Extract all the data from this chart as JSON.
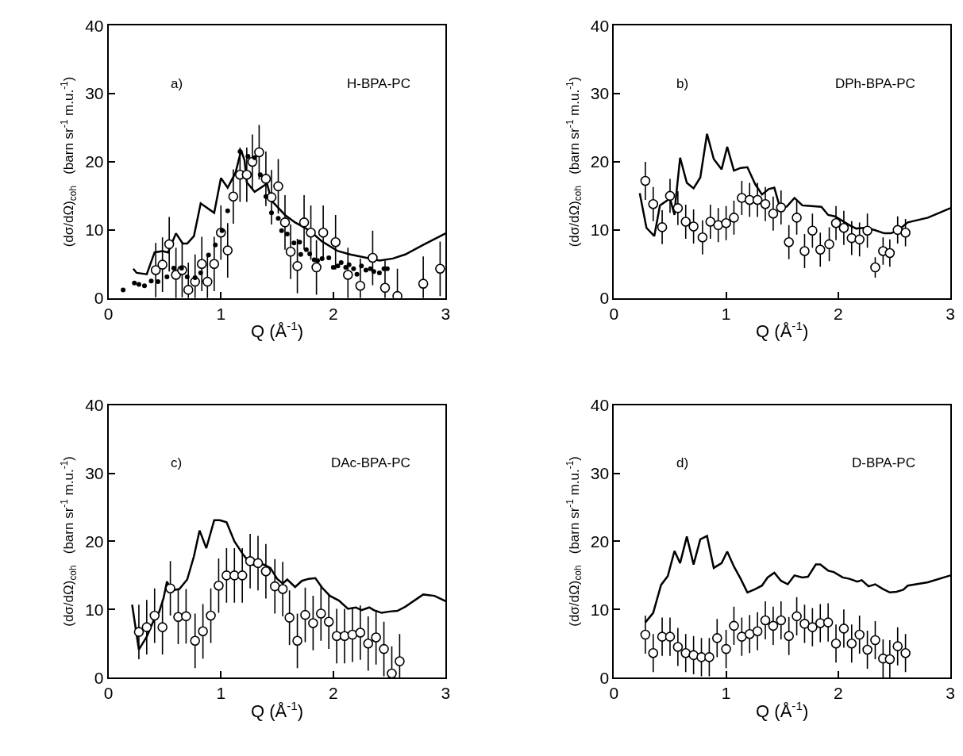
{
  "chart_data": [
    {
      "type": "line",
      "xlabel": "Q (Å$^{-1}$)",
      "ylabel": "(dσ/dΩ)$_{coh}$   (barn sr$^{-1}$ m.u.$^{-1}$)",
      "annotations": [
        "a)",
        "H-BPA-PC"
      ],
      "xlim": [
        0,
        3
      ],
      "xticks": [
        0,
        1,
        2,
        3
      ],
      "ylim": [
        0,
        40
      ],
      "yticks": [
        0,
        10,
        20,
        30,
        40
      ],
      "series": [
        {
          "color": "#000000",
          "line_style": "solid",
          "x": [
            0.22,
            0.25,
            0.34,
            0.41,
            0.48,
            0.53,
            0.6,
            0.66,
            0.7,
            0.76,
            0.82,
            0.94,
            1.0,
            1.06,
            1.13,
            1.18,
            1.21,
            1.23,
            1.3,
            1.41,
            1.45,
            1.57,
            1.66,
            1.79,
            1.9,
            2.04,
            2.15,
            2.27,
            2.41,
            2.53,
            2.64,
            2.8,
            3.0
          ],
          "values": [
            4.3,
            3.7,
            3.5,
            6.7,
            6.9,
            6.7,
            9.5,
            8.0,
            8.0,
            9.1,
            13.9,
            12.5,
            17.6,
            16.2,
            18.4,
            21.7,
            20.2,
            17.0,
            15.6,
            16.8,
            14.3,
            12.2,
            11.1,
            9.9,
            8.3,
            6.9,
            6.4,
            6.0,
            5.5,
            5.8,
            6.4,
            7.8,
            9.5
          ]
        },
        {
          "type": "scatter",
          "color": "#000000",
          "marker": "circle",
          "x": [
            0.13,
            0.23,
            0.27,
            0.32,
            0.38,
            0.44,
            0.52,
            0.58,
            0.65,
            0.7,
            0.77,
            0.82,
            0.89,
            0.95,
            1.01,
            1.06,
            1.17,
            1.24,
            1.3,
            1.35,
            1.4,
            1.45,
            1.51,
            1.54,
            1.59,
            1.65,
            1.7,
            1.71,
            1.76,
            1.79,
            1.83,
            1.86,
            1.9,
            1.96,
            2.0,
            2.04,
            2.07,
            2.11,
            2.14,
            2.18,
            2.21,
            2.25,
            2.29,
            2.33,
            2.36,
            2.41,
            2.45,
            2.48
          ],
          "values": [
            1.2,
            2.2,
            2.0,
            1.8,
            2.5,
            2.4,
            3.1,
            4.4,
            4.4,
            3.1,
            3.0,
            3.7,
            6.3,
            7.8,
            9.9,
            12.8,
            21.5,
            20.8,
            20.6,
            18.1,
            14.9,
            12.5,
            11.7,
            9.9,
            9.4,
            8.1,
            8.2,
            6.4,
            7.1,
            6.5,
            5.6,
            5.5,
            5.8,
            5.9,
            4.5,
            4.7,
            5.2,
            4.5,
            4.9,
            4.3,
            3.5,
            4.7,
            4.1,
            4.3,
            3.9,
            3.7,
            4.3,
            4.3
          ]
        },
        {
          "type": "scatter",
          "color": "#000000",
          "marker": "circle",
          "x": [
            0.42,
            0.48,
            0.54,
            0.6,
            0.655,
            0.71,
            0.77,
            0.83,
            0.88,
            0.94,
            1.0,
            1.06,
            1.11,
            1.17,
            1.23,
            1.28,
            1.34,
            1.4,
            1.45,
            1.51,
            1.57,
            1.62,
            1.68,
            1.74,
            1.8,
            1.85,
            1.91,
            2.02,
            2.13,
            2.24,
            2.35,
            2.46,
            2.57,
            2.8,
            2.95
          ],
          "values": [
            4.1,
            4.9,
            7.9,
            3.4,
            4.1,
            1.2,
            2.4,
            5.0,
            2.4,
            5.0,
            9.6,
            7.0,
            14.9,
            18.1,
            18.1,
            20.0,
            21.4,
            17.5,
            14.8,
            16.4,
            11.1,
            6.8,
            4.7,
            11.1,
            9.6,
            4.5,
            9.6,
            8.2,
            3.4,
            1.8,
            5.9,
            1.5,
            0.3,
            2.1,
            4.3
          ],
          "errors": [
            4,
            4,
            4,
            [
              0,
              7.4
            ],
            4,
            [
              0,
              5.2
            ],
            [
              0,
              6.4
            ],
            4,
            [
              0,
              6.4
            ],
            4,
            4,
            4,
            4,
            4,
            4,
            4,
            4,
            4,
            4,
            4,
            4,
            4,
            4,
            4,
            4,
            4,
            4,
            4,
            [
              0,
              7.4
            ],
            [
              0,
              5.8
            ],
            4,
            [
              0,
              5.5
            ],
            [
              0,
              4.3
            ],
            [
              0,
              6.1
            ],
            4
          ]
        }
      ]
    },
    {
      "type": "line",
      "xlabel": "Q (Å$^{-1}$)",
      "ylabel": "(dσ/dΩ)$_{coh}$   (barn sr$^{-1}$ m.u.$^{-1}$)",
      "annotations": [
        "b)",
        "DPh-BPA-PC"
      ],
      "xlim": [
        0,
        3
      ],
      "xticks": [
        0,
        1,
        2,
        3
      ],
      "ylim": [
        0,
        40
      ],
      "yticks": [
        0,
        10,
        20,
        30,
        40
      ],
      "series": [
        {
          "color": "#000000",
          "line_style": "solid",
          "x": [
            0.23,
            0.29,
            0.36,
            0.41,
            0.5,
            0.54,
            0.55,
            0.59,
            0.65,
            0.71,
            0.77,
            0.83,
            0.89,
            0.96,
            1.01,
            1.07,
            1.13,
            1.19,
            1.26,
            1.32,
            1.38,
            1.43,
            1.48,
            1.54,
            1.61,
            1.68,
            1.76,
            1.85,
            1.91,
            1.97,
            2.04,
            2.1,
            2.16,
            2.23,
            2.32,
            2.41,
            2.47,
            2.53,
            2.62,
            2.8,
            3.0
          ],
          "values": [
            15.4,
            10.3,
            9.1,
            13.6,
            14.6,
            12.2,
            14.3,
            20.6,
            16.9,
            16.1,
            17.7,
            24.1,
            20.4,
            18.9,
            22.2,
            18.7,
            19.1,
            19.2,
            16.7,
            15.2,
            16.0,
            16.2,
            13.3,
            13.4,
            14.7,
            13.6,
            13.5,
            13.4,
            12.2,
            12.0,
            11.3,
            10.7,
            10.2,
            10.3,
            10.0,
            9.5,
            9.5,
            9.9,
            11.1,
            11.8,
            13.2
          ]
        },
        {
          "type": "scatter",
          "color": "#000000",
          "marker": "circle",
          "x": [
            0.28,
            0.35,
            0.43,
            0.5,
            0.57,
            0.64,
            0.71,
            0.79,
            0.86,
            0.93,
            1.0,
            1.07,
            1.14,
            1.21,
            1.28,
            1.35,
            1.42,
            1.49,
            1.56,
            1.63,
            1.7,
            1.77,
            1.84,
            1.92,
            1.98,
            2.05,
            2.12,
            2.19,
            2.26,
            2.33,
            2.4,
            2.46,
            2.53,
            2.6
          ],
          "values": [
            17.2,
            13.8,
            10.4,
            15.0,
            13.2,
            11.2,
            10.5,
            8.9,
            11.2,
            10.7,
            11.0,
            11.8,
            14.7,
            14.4,
            14.4,
            13.8,
            12.4,
            13.3,
            8.2,
            11.8,
            6.9,
            9.9,
            7.1,
            7.9,
            11.0,
            10.3,
            8.8,
            8.6,
            9.9,
            4.5,
            6.9,
            6.6,
            10.0,
            9.6
          ],
          "errors": [
            2.8,
            2.5,
            2.5,
            2.5,
            2.5,
            2.5,
            2.5,
            2.5,
            2.5,
            2.5,
            2.5,
            2.5,
            2.5,
            2.5,
            2.5,
            2.5,
            2.5,
            2.5,
            2.5,
            2.5,
            2.5,
            2.5,
            2.5,
            2.5,
            2.5,
            2.5,
            2.5,
            2.5,
            2.5,
            1.5,
            2.0,
            2.0,
            2.0,
            2.0
          ]
        }
      ]
    },
    {
      "type": "line",
      "xlabel": "Q (Å$^{-1}$)",
      "ylabel": "(dσ/dΩ)$_{coh}$   (barn sr$^{-1}$ m.u.$^{-1}$)",
      "annotations": [
        "c)",
        "DAc-BPA-PC"
      ],
      "xlim": [
        0,
        3
      ],
      "xticks": [
        0,
        1,
        2,
        3
      ],
      "ylim": [
        0,
        40
      ],
      "yticks": [
        0,
        10,
        20,
        30,
        40
      ],
      "series": [
        {
          "color": "#000000",
          "line_style": "solid",
          "x": [
            0.21,
            0.27,
            0.34,
            0.41,
            0.45,
            0.49,
            0.52,
            0.56,
            0.63,
            0.7,
            0.76,
            0.81,
            0.87,
            0.94,
            0.99,
            1.05,
            1.12,
            1.2,
            1.26,
            1.31,
            1.38,
            1.44,
            1.5,
            1.55,
            1.59,
            1.66,
            1.72,
            1.78,
            1.84,
            1.9,
            1.97,
            2.05,
            2.13,
            2.2,
            2.25,
            2.32,
            2.36,
            2.43,
            2.5,
            2.57,
            2.64,
            2.8,
            2.9,
            3.0
          ],
          "values": [
            10.7,
            4.1,
            6.0,
            8.7,
            9.6,
            11.7,
            14.1,
            12.8,
            13.0,
            14.4,
            17.8,
            21.6,
            19.0,
            23.1,
            23.1,
            22.8,
            20.0,
            18.0,
            16.8,
            16.4,
            16.6,
            16.1,
            14.5,
            13.8,
            14.4,
            13.3,
            14.2,
            14.5,
            14.6,
            13.2,
            12.0,
            11.3,
            10.1,
            10.3,
            9.9,
            10.3,
            9.9,
            9.5,
            9.7,
            9.8,
            10.4,
            12.2,
            12.0,
            11.2
          ]
        },
        {
          "type": "scatter",
          "color": "#000000",
          "marker": "circle",
          "x": [
            0.27,
            0.34,
            0.41,
            0.48,
            0.55,
            0.62,
            0.69,
            0.77,
            0.84,
            0.91,
            0.98,
            1.05,
            1.12,
            1.19,
            1.26,
            1.33,
            1.4,
            1.48,
            1.55,
            1.61,
            1.68,
            1.75,
            1.82,
            1.89,
            1.96,
            2.03,
            2.1,
            2.17,
            2.24,
            2.31,
            2.38,
            2.45,
            2.52,
            2.59
          ],
          "values": [
            6.7,
            7.4,
            9.1,
            7.4,
            13.1,
            8.9,
            9.0,
            5.4,
            6.8,
            9.1,
            13.5,
            15.0,
            15.0,
            15.0,
            17.1,
            16.8,
            15.6,
            13.4,
            13.0,
            8.8,
            5.4,
            9.2,
            8.0,
            9.4,
            8.2,
            6.1,
            6.1,
            6.3,
            6.6,
            5.0,
            5.9,
            4.2,
            0.6,
            2.4
          ],
          "errors": [
            4,
            4,
            4,
            4,
            4,
            4,
            4,
            4,
            4,
            4,
            4,
            4,
            4,
            4,
            4,
            4,
            4,
            4,
            4,
            4,
            4,
            4,
            4,
            4,
            4,
            4,
            4,
            4,
            4,
            4,
            4,
            4,
            [
              0,
              4.6
            ],
            [
              0,
              6.4
            ]
          ]
        }
      ]
    },
    {
      "type": "line",
      "xlabel": "Q (Å$^{-1}$)",
      "ylabel": "(dσ/dΩ)$_{coh}$   (barn sr$^{-1}$ m.u.$^{-1}$)",
      "annotations": [
        "d)",
        "D-BPA-PC"
      ],
      "xlim": [
        0,
        3
      ],
      "xticks": [
        0,
        1,
        2,
        3
      ],
      "ylim": [
        0,
        40
      ],
      "yticks": [
        0,
        10,
        20,
        30,
        40
      ],
      "series": [
        {
          "color": "#000000",
          "line_style": "solid",
          "x": [
            0.28,
            0.35,
            0.42,
            0.48,
            0.54,
            0.59,
            0.65,
            0.71,
            0.77,
            0.83,
            0.89,
            0.96,
            1.01,
            1.07,
            1.13,
            1.19,
            1.26,
            1.32,
            1.37,
            1.43,
            1.49,
            1.55,
            1.61,
            1.68,
            1.73,
            1.8,
            1.84,
            1.91,
            1.96,
            2.04,
            2.1,
            2.17,
            2.21,
            2.27,
            2.33,
            2.4,
            2.46,
            2.52,
            2.58,
            2.62,
            2.8,
            3.0
          ],
          "values": [
            8.1,
            9.5,
            13.6,
            14.9,
            18.6,
            16.8,
            20.7,
            16.6,
            20.3,
            20.8,
            16.1,
            16.8,
            18.5,
            16.3,
            14.5,
            12.5,
            13.0,
            13.5,
            14.7,
            15.4,
            14.2,
            13.7,
            15.0,
            14.7,
            14.8,
            16.6,
            16.6,
            15.7,
            15.5,
            14.7,
            14.5,
            14.1,
            14.3,
            13.4,
            13.7,
            13.0,
            12.5,
            12.6,
            12.9,
            13.5,
            14.0,
            15.0
          ]
        },
        {
          "type": "scatter",
          "color": "#000000",
          "marker": "circle",
          "x": [
            0.28,
            0.35,
            0.43,
            0.5,
            0.57,
            0.64,
            0.71,
            0.78,
            0.85,
            0.92,
            1.0,
            1.07,
            1.14,
            1.21,
            1.28,
            1.35,
            1.42,
            1.49,
            1.56,
            1.63,
            1.7,
            1.77,
            1.84,
            1.91,
            1.98,
            2.05,
            2.12,
            2.19,
            2.26,
            2.33,
            2.4,
            2.46,
            2.53,
            2.6
          ],
          "values": [
            6.3,
            3.6,
            6.0,
            6.0,
            4.5,
            3.6,
            3.3,
            3.0,
            3.0,
            5.8,
            4.2,
            7.6,
            6.0,
            6.4,
            6.8,
            8.4,
            7.6,
            8.4,
            6.1,
            9.0,
            7.9,
            7.4,
            8.0,
            8.1,
            5.0,
            7.2,
            5.0,
            6.3,
            4.1,
            5.5,
            2.8,
            2.7,
            4.6,
            3.6
          ],
          "errors": [
            2.8,
            2.8,
            2.8,
            2.8,
            2.8,
            2.8,
            2.8,
            2.8,
            2.8,
            2.8,
            2.8,
            2.8,
            2.8,
            2.8,
            2.8,
            2.8,
            2.8,
            2.8,
            2.8,
            2.8,
            2.8,
            2.8,
            2.8,
            2.8,
            2.8,
            2.8,
            2.8,
            2.8,
            2.8,
            2.8,
            2.8,
            [
              0,
              5.5
            ],
            2.8,
            2.8
          ]
        }
      ]
    }
  ]
}
